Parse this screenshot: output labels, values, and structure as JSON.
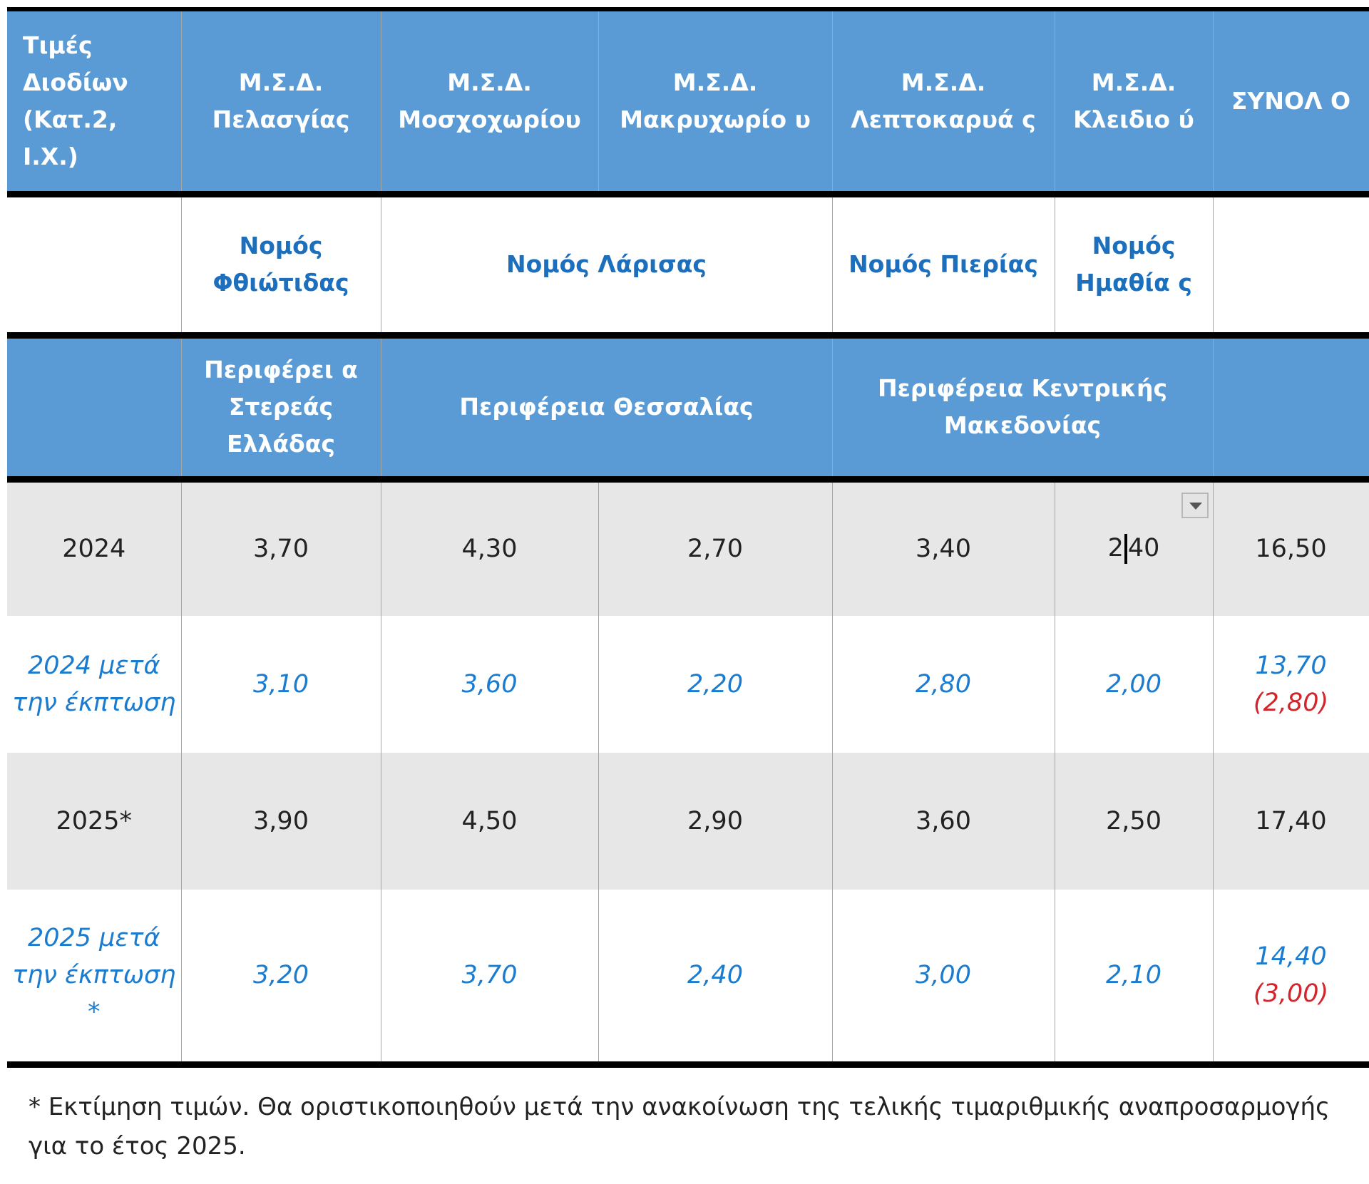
{
  "header": {
    "corner": "Τιμές Διοδίων (Κατ.2, Ι.Χ.)",
    "columns": [
      "Μ.Σ.Δ. Πελασγίας",
      "Μ.Σ.Δ. Μοσχοχωρίου",
      "Μ.Σ.Δ. Μακρυχωρίο υ",
      "Μ.Σ.Δ. Λεπτοκαρυά ς",
      "Μ.Σ.Δ. Κλειδιο ύ",
      "ΣΥΝΟΛ Ο"
    ]
  },
  "prefectures": [
    "Νομός Φθιώτιδας",
    "Νομός Λάρισας",
    "Νομός Πιερίας",
    "Νομός Ημαθία ς"
  ],
  "regions": [
    "Περιφέρει α Στερεάς Ελλάδας",
    "Περιφέρεια Θεσσαλίας",
    "Περιφέρεια Κεντρικής Μακεδονίας"
  ],
  "rows": [
    {
      "label": "2024",
      "values": [
        "3,70",
        "4,30",
        "2,70",
        "3,40",
        "2,40",
        "16,50"
      ]
    },
    {
      "label": "2024 μετά την έκπτωση",
      "values": [
        "3,10",
        "3,60",
        "2,20",
        "2,80",
        "2,00",
        "13,70"
      ],
      "discount": "(2,80)"
    },
    {
      "label": "2025*",
      "values": [
        "3,90",
        "4,50",
        "2,90",
        "3,60",
        "2,50",
        "17,40"
      ]
    },
    {
      "label": "2025 μετά την έκπτωση *",
      "values": [
        "3,20",
        "3,70",
        "2,40",
        "3,00",
        "2,10",
        "14,40"
      ],
      "discount": "(3,00)"
    }
  ],
  "active_cell_left": "2",
  "active_cell_right": "40",
  "footnote": "* Εκτίμηση τιμών. Θα οριστικοποιηθούν μετά την ανακοίνωση της τελικής τιμαριθμικής αναπροσαρμογής για το έτος 2025.",
  "footnote_line1": "* Εκτίμηση τιμών. Θα οριστικοποιηθούν μετά την ανακοίνωση της τελικής τιμαριθμικής αναπροσαρμογής",
  "footnote_line2": "για το έτος 2025.",
  "colors": {
    "header_bg": "#5b9bd5",
    "header_text": "#ffffff",
    "blue_text": "#1b7ccf",
    "discount_red": "#d0262c",
    "gray_row": "#e7e7e7"
  }
}
